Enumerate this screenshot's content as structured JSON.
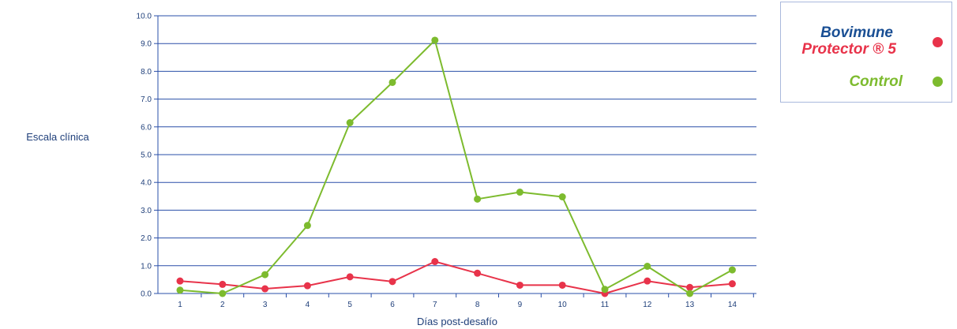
{
  "chart_data": {
    "type": "line",
    "ylabel": "Escala clínica",
    "xlabel": "Días post-desafío",
    "ylim": [
      0,
      10
    ],
    "y_ticks": [
      "0.0",
      "1.0",
      "2.0",
      "3.0",
      "4.0",
      "5.0",
      "6.0",
      "7.0",
      "8.0",
      "9.0",
      "10.0"
    ],
    "categories": [
      "1",
      "2",
      "3",
      "4",
      "5",
      "6",
      "7",
      "8",
      "9",
      "10",
      "11",
      "12",
      "13",
      "14"
    ],
    "grid": true,
    "legend_position": "top-right",
    "series": [
      {
        "name_line1": "Bovimune",
        "name_line2": "Protector ® 5",
        "color": "#e8334a",
        "name_color1": "#1a4f94",
        "values": [
          0.45,
          0.33,
          0.17,
          0.28,
          0.6,
          0.43,
          1.15,
          0.73,
          0.3,
          0.3,
          0.0,
          0.45,
          0.22,
          0.35
        ]
      },
      {
        "name": "Control",
        "color": "#7dbb2e",
        "values": [
          0.12,
          0.0,
          0.68,
          2.45,
          6.15,
          7.6,
          9.12,
          3.4,
          3.65,
          3.48,
          0.15,
          0.98,
          0.0,
          0.85
        ]
      }
    ]
  }
}
